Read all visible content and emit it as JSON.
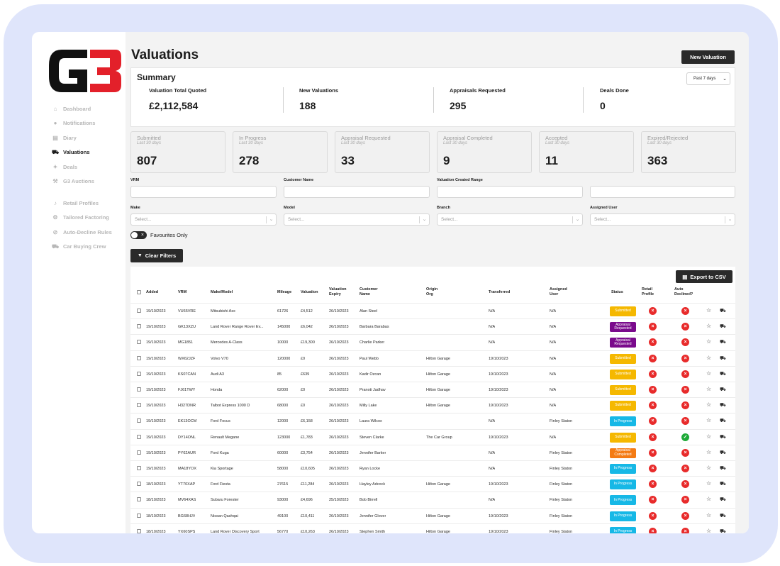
{
  "sidebar": {
    "items": [
      {
        "label": "Dashboard",
        "icon": "home-icon",
        "active": false
      },
      {
        "label": "Notifications",
        "icon": "chat-bubble-icon",
        "active": false
      },
      {
        "label": "Diary",
        "icon": "book-icon",
        "active": false
      },
      {
        "label": "Valuations",
        "icon": "car-icon",
        "active": true
      },
      {
        "label": "Deals",
        "icon": "handshake-icon",
        "active": false
      },
      {
        "label": "G3 Auctions",
        "icon": "gavel-icon",
        "active": false
      },
      {
        "label": "Retail Profiles",
        "icon": "bell-icon",
        "active": false
      },
      {
        "label": "Tailored Factoring",
        "icon": "gear-icon",
        "active": false
      },
      {
        "label": "Auto-Decline Rules",
        "icon": "block-icon",
        "active": false
      },
      {
        "label": "Car Buying Crew",
        "icon": "car-icon",
        "active": false
      }
    ]
  },
  "header": {
    "title": "Valuations",
    "new_valuation": "New Valuation"
  },
  "summary": {
    "title": "Summary",
    "period": "Past 7 days",
    "items": [
      {
        "label": "Valuation Total Quoted",
        "value": "£2,112,584"
      },
      {
        "label": "New Valuations",
        "value": "188"
      },
      {
        "label": "Appraisals Requested",
        "value": "295"
      },
      {
        "label": "Deals Done",
        "value": "0"
      }
    ]
  },
  "stats": [
    {
      "title": "Submitted",
      "sub": "Last 30 days",
      "value": "807"
    },
    {
      "title": "In Progress",
      "sub": "Last 30 days",
      "value": "278"
    },
    {
      "title": "Appraisal Requested",
      "sub": "Last 30 days",
      "value": "33"
    },
    {
      "title": "Appraisal Completed",
      "sub": "Last 30 days",
      "value": "9"
    },
    {
      "title": "Accepted",
      "sub": "Last 30 days",
      "value": "11"
    },
    {
      "title": "Expired/Rejected",
      "sub": "Last 30 days",
      "value": "363"
    }
  ],
  "filters": {
    "vrm": "VRM",
    "customer_name": "Customer Name",
    "created_range": "Valuation Created Range",
    "make": "Make",
    "model": "Model",
    "branch": "Branch",
    "assigned_user": "Assigned User",
    "select_placeholder": "Select...",
    "favourites_only": "Favourites Only",
    "clear_filters": "Clear Filters"
  },
  "table": {
    "export": "Export to CSV",
    "headers": {
      "added": "Added",
      "vrm": "VRM",
      "make_model": "Make/Model",
      "mileage": "Mileage",
      "valuation": "Valuation",
      "valuation_expiry": "Valuation\nExpiry",
      "customer_name": "Customer\nName",
      "origin_org": "Origin\nOrg",
      "transferred": "Transferred",
      "assigned_user": "Assigned\nUser",
      "status": "Status",
      "retail_profile": "Retail\nProfile",
      "auto_declined": "Auto\nDeclined?"
    },
    "rows": [
      {
        "added": "19/10/2023",
        "vrm": "VU65VRE",
        "make_model": "Mitsubishi Asx",
        "mileage": "61726",
        "valuation": "£4,512",
        "expiry": "26/10/2023",
        "customer": "Alan Steel",
        "origin": "",
        "transferred": "N/A",
        "assigned": "N/A",
        "status": "Submitted",
        "status_key": "submitted",
        "auto_declined": false
      },
      {
        "added": "19/10/2023",
        "vrm": "GK13XZU",
        "make_model": "Land Rover Range Rover Ev...",
        "mileage": "145000",
        "valuation": "£6,042",
        "expiry": "26/10/2023",
        "customer": "Barbara Barabas",
        "origin": "",
        "transferred": "N/A",
        "assigned": "N/A",
        "status": "Appraisal Requested",
        "status_key": "appraisal-requested",
        "auto_declined": false
      },
      {
        "added": "19/10/2023",
        "vrm": "MG1851",
        "make_model": "Mercedes A-Class",
        "mileage": "10000",
        "valuation": "£19,300",
        "expiry": "26/10/2023",
        "customer": "Charlie Parker",
        "origin": "",
        "transferred": "N/A",
        "assigned": "N/A",
        "status": "Appraisal Requested",
        "status_key": "appraisal-requested",
        "auto_declined": false
      },
      {
        "added": "19/10/2023",
        "vrm": "WX62JZF",
        "make_model": "Volvo V70",
        "mileage": "120000",
        "valuation": "£0",
        "expiry": "26/10/2023",
        "customer": "Paul Webb",
        "origin": "Hilton Garage",
        "transferred": "19/10/2023",
        "assigned": "N/A",
        "status": "Submitted",
        "status_key": "submitted",
        "auto_declined": false
      },
      {
        "added": "19/10/2023",
        "vrm": "KS07CAN",
        "make_model": "Audi A3",
        "mileage": "85",
        "valuation": "£639",
        "expiry": "26/10/2023",
        "customer": "Kadir Ozcan",
        "origin": "Hilton Garage",
        "transferred": "19/10/2023",
        "assigned": "N/A",
        "status": "Submitted",
        "status_key": "submitted",
        "auto_declined": false
      },
      {
        "added": "19/10/2023",
        "vrm": "FJ61TWY",
        "make_model": "Honda",
        "mileage": "62000",
        "valuation": "£0",
        "expiry": "26/10/2023",
        "customer": "Pranoti Jadhav",
        "origin": "Hilton Garage",
        "transferred": "19/10/2023",
        "assigned": "N/A",
        "status": "Submitted",
        "status_key": "submitted",
        "auto_declined": false
      },
      {
        "added": "19/10/2023",
        "vrm": "H327DNR",
        "make_model": "Talbot Express 1000 D",
        "mileage": "68000",
        "valuation": "£0",
        "expiry": "26/10/2023",
        "customer": "Milly Lake",
        "origin": "Hilton Garage",
        "transferred": "19/10/2023",
        "assigned": "N/A",
        "status": "Submitted",
        "status_key": "submitted",
        "auto_declined": false
      },
      {
        "added": "19/10/2023",
        "vrm": "EK13OCM",
        "make_model": "Ford Focus",
        "mileage": "12000",
        "valuation": "£6,158",
        "expiry": "26/10/2023",
        "customer": "Laura Wilcox",
        "origin": "",
        "transferred": "N/A",
        "assigned": "Finley Staton",
        "status": "In Progress",
        "status_key": "in-progress",
        "auto_declined": false
      },
      {
        "added": "19/10/2023",
        "vrm": "DY14ONL",
        "make_model": "Renault Megane",
        "mileage": "123000",
        "valuation": "£1,783",
        "expiry": "26/10/2023",
        "customer": "Steven Clarke",
        "origin": "The Car Group",
        "transferred": "19/10/2023",
        "assigned": "N/A",
        "status": "Submitted",
        "status_key": "submitted",
        "auto_declined": true
      },
      {
        "added": "19/10/2023",
        "vrm": "PY62AUR",
        "make_model": "Ford Kuga",
        "mileage": "60000",
        "valuation": "£3,754",
        "expiry": "26/10/2023",
        "customer": "Jennifer Barker",
        "origin": "",
        "transferred": "N/A",
        "assigned": "Finley Staton",
        "status": "Appraisal Completed",
        "status_key": "appraisal-completed",
        "auto_declined": false
      },
      {
        "added": "19/10/2023",
        "vrm": "MA18YOX",
        "make_model": "Kia Sportage",
        "mileage": "58000",
        "valuation": "£10,605",
        "expiry": "26/10/2023",
        "customer": "Ryan Locke",
        "origin": "",
        "transferred": "N/A",
        "assigned": "Finley Staton",
        "status": "In Progress",
        "status_key": "in-progress",
        "auto_declined": false
      },
      {
        "added": "18/10/2023",
        "vrm": "YT70XAP",
        "make_model": "Ford Fiesta",
        "mileage": "27615",
        "valuation": "£11,284",
        "expiry": "26/10/2023",
        "customer": "Hayley Adcock",
        "origin": "Hilton Garage",
        "transferred": "19/10/2023",
        "assigned": "Finley Staton",
        "status": "In Progress",
        "status_key": "in-progress",
        "auto_declined": false
      },
      {
        "added": "18/10/2023",
        "vrm": "MV64XAS",
        "make_model": "Subaru Forester",
        "mileage": "93000",
        "valuation": "£4,696",
        "expiry": "25/10/2023",
        "customer": "Bob Birrell",
        "origin": "",
        "transferred": "N/A",
        "assigned": "Finley Staton",
        "status": "In Progress",
        "status_key": "in-progress",
        "auto_declined": false
      },
      {
        "added": "18/10/2023",
        "vrm": "BG68HJV",
        "make_model": "Nissan Qashqai",
        "mileage": "49100",
        "valuation": "£10,411",
        "expiry": "26/10/2023",
        "customer": "Jennifer Glover",
        "origin": "Hilton Garage",
        "transferred": "19/10/2023",
        "assigned": "Finley Staton",
        "status": "In Progress",
        "status_key": "in-progress",
        "auto_declined": false
      },
      {
        "added": "18/10/2023",
        "vrm": "YX60SPS",
        "make_model": "Land Rover Discovery Sport",
        "mileage": "56770",
        "valuation": "£10,263",
        "expiry": "26/10/2023",
        "customer": "Stephen Smith",
        "origin": "Hilton Garage",
        "transferred": "19/10/2023",
        "assigned": "Finley Staton",
        "status": "In Progress",
        "status_key": "in-progress",
        "auto_declined": false
      }
    ]
  },
  "colors": {
    "submitted": "#f5b800",
    "appraisal_requested": "#7a0a8c",
    "in_progress": "#16b8e6",
    "appraisal_completed": "#f47b14",
    "decline": "#e82b2b",
    "accept": "#1faa39",
    "logo_red": "#e3202a"
  }
}
